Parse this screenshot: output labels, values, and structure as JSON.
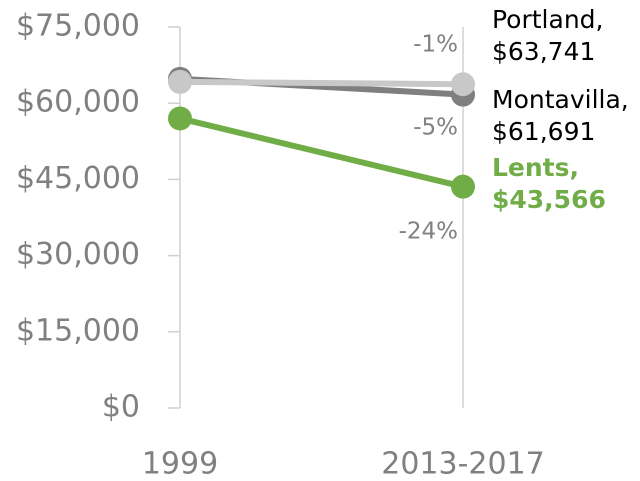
{
  "chart_data": {
    "type": "line",
    "categories": [
      "1999",
      "2013-2017"
    ],
    "series": [
      {
        "name": "Montavilla",
        "color": "#7f7f7f",
        "values": [
          64800,
          61691
        ],
        "value_labels": [
          null,
          "Montavilla, $61,691"
        ]
      },
      {
        "name": "Portland",
        "color": "#c8c8c8",
        "values": [
          64200,
          63741
        ],
        "value_labels": [
          null,
          "Portland, $63,741"
        ]
      },
      {
        "name": "Lents",
        "color": "#70ad47",
        "values": [
          57000,
          43566
        ],
        "value_labels": [
          null,
          "Lents, $43,566"
        ]
      }
    ],
    "annotations": [
      "-5%",
      "-1%",
      "-24%"
    ],
    "ylim": [
      0,
      75000
    ],
    "yticks": [
      {
        "value": 0,
        "label": "$0"
      },
      {
        "value": 15000,
        "label": "$15,000"
      },
      {
        "value": 30000,
        "label": "$30,000"
      },
      {
        "value": 45000,
        "label": "$45,000"
      },
      {
        "value": 60000,
        "label": "$60,000"
      },
      {
        "value": 75000,
        "label": "$75,000"
      }
    ]
  }
}
